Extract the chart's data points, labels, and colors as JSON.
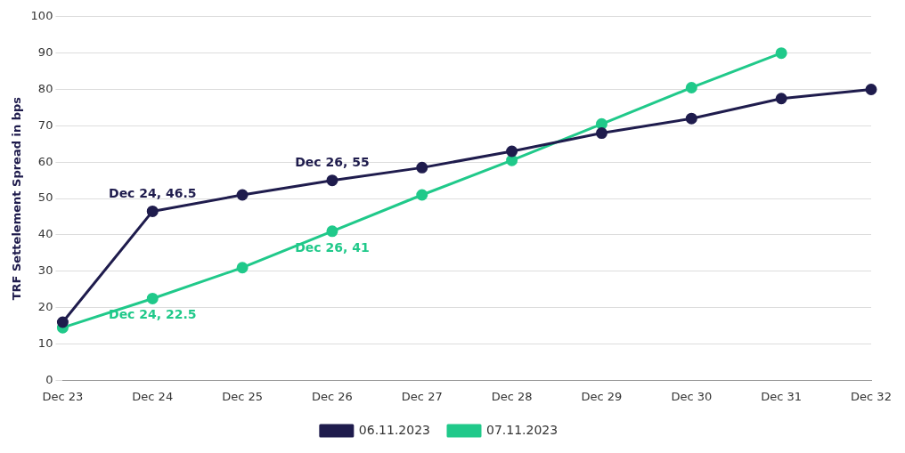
{
  "chart_data": {
    "type": "line",
    "ylabel": "TRF Settelement Spread in bps",
    "categories": [
      "Dec 23",
      "Dec 24",
      "Dec 25",
      "Dec 26",
      "Dec 27",
      "Dec 28",
      "Dec 29",
      "Dec 30",
      "Dec 31",
      "Dec 32"
    ],
    "series": [
      {
        "name": "06.11.2023",
        "color": "#1f1c4d",
        "values": [
          16,
          46.5,
          51,
          55,
          58.5,
          63,
          68,
          72,
          77.5,
          80
        ]
      },
      {
        "name": "07.11.2023",
        "color": "#20c98a",
        "values": [
          14.5,
          22.5,
          31,
          41,
          51,
          60.5,
          70.5,
          80.5,
          90,
          null
        ]
      }
    ],
    "ylim": [
      0,
      100
    ],
    "yticks": [
      0,
      10,
      20,
      30,
      40,
      50,
      60,
      70,
      80,
      90,
      100
    ],
    "grid": "y",
    "legend": "bottom",
    "marker": "circle",
    "line_style": "solid",
    "annotations": [
      {
        "text": "Dec 24, 46.5",
        "x": "Dec 24",
        "y": 46.5
      },
      {
        "text": "Dec 26, 55",
        "x": "Dec 26",
        "y": 55
      },
      {
        "text": "Dec 26, 41",
        "x": "Dec 26",
        "y": 41
      },
      {
        "text": "Dec 24, 22.5",
        "x": "Dec 24",
        "y": 22.5
      }
    ]
  }
}
